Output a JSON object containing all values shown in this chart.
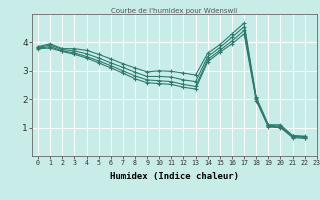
{
  "title": "Courbe de l'humidex pour Wdenswil",
  "xlabel": "Humidex (Indice chaleur)",
  "ylabel": "",
  "bg_color": "#c8ede8",
  "line_color": "#2d7a6e",
  "grid_color": "#ffffff",
  "xlim": [
    -0.5,
    23
  ],
  "ylim": [
    0,
    5
  ],
  "xticks": [
    0,
    1,
    2,
    3,
    4,
    5,
    6,
    7,
    8,
    9,
    10,
    11,
    12,
    13,
    14,
    15,
    16,
    17,
    18,
    19,
    20,
    21,
    22,
    23
  ],
  "yticks": [
    1,
    2,
    3,
    4
  ],
  "lines": [
    [
      3.85,
      3.95,
      3.78,
      3.78,
      3.72,
      3.58,
      3.42,
      3.25,
      3.1,
      2.96,
      3.0,
      2.98,
      2.92,
      2.85,
      3.62,
      3.92,
      4.3,
      4.68,
      2.07,
      1.1,
      1.1,
      0.72,
      0.7
    ],
    [
      3.83,
      3.9,
      3.75,
      3.7,
      3.6,
      3.45,
      3.28,
      3.12,
      2.95,
      2.8,
      2.8,
      2.78,
      2.68,
      2.62,
      3.5,
      3.82,
      4.18,
      4.55,
      2.05,
      1.08,
      1.05,
      0.7,
      0.68
    ],
    [
      3.8,
      3.85,
      3.7,
      3.63,
      3.5,
      3.35,
      3.18,
      3.0,
      2.82,
      2.68,
      2.65,
      2.62,
      2.52,
      2.45,
      3.4,
      3.72,
      4.05,
      4.42,
      2.0,
      1.05,
      1.02,
      0.68,
      0.65
    ],
    [
      3.78,
      3.8,
      3.68,
      3.58,
      3.45,
      3.28,
      3.1,
      2.92,
      2.72,
      2.58,
      2.55,
      2.52,
      2.42,
      2.36,
      3.32,
      3.65,
      3.95,
      4.3,
      1.95,
      1.02,
      1.0,
      0.65,
      0.62
    ]
  ]
}
